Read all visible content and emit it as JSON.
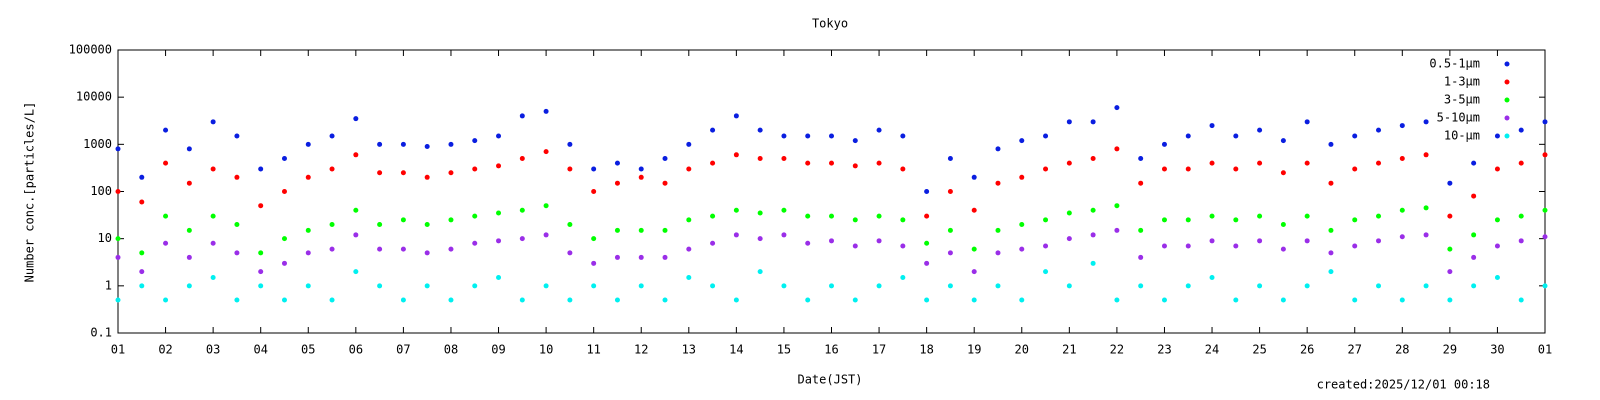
{
  "chart_data": {
    "type": "scatter",
    "title": "Tokyo",
    "xlabel": "Date(JST)",
    "ylabel": "Number conc.[particles/L]",
    "annotation": "created:2025/12/01 00:18",
    "yscale": "log",
    "ylim": [
      0.1,
      100000
    ],
    "yticks": [
      0.1,
      1,
      10,
      100,
      1000,
      10000,
      100000
    ],
    "xlim": [
      1,
      31
    ],
    "xticks": [
      {
        "value": 1,
        "label": "01"
      },
      {
        "value": 2,
        "label": "02"
      },
      {
        "value": 3,
        "label": "03"
      },
      {
        "value": 4,
        "label": "04"
      },
      {
        "value": 5,
        "label": "05"
      },
      {
        "value": 6,
        "label": "06"
      },
      {
        "value": 7,
        "label": "07"
      },
      {
        "value": 8,
        "label": "08"
      },
      {
        "value": 9,
        "label": "09"
      },
      {
        "value": 10,
        "label": "10"
      },
      {
        "value": 11,
        "label": "11"
      },
      {
        "value": 12,
        "label": "12"
      },
      {
        "value": 13,
        "label": "13"
      },
      {
        "value": 14,
        "label": "14"
      },
      {
        "value": 15,
        "label": "15"
      },
      {
        "value": 16,
        "label": "16"
      },
      {
        "value": 17,
        "label": "17"
      },
      {
        "value": 18,
        "label": "18"
      },
      {
        "value": 19,
        "label": "19"
      },
      {
        "value": 20,
        "label": "20"
      },
      {
        "value": 21,
        "label": "21"
      },
      {
        "value": 22,
        "label": "22"
      },
      {
        "value": 23,
        "label": "23"
      },
      {
        "value": 24,
        "label": "24"
      },
      {
        "value": 25,
        "label": "25"
      },
      {
        "value": 26,
        "label": "26"
      },
      {
        "value": 27,
        "label": "27"
      },
      {
        "value": 28,
        "label": "28"
      },
      {
        "value": 29,
        "label": "29"
      },
      {
        "value": 30,
        "label": "30"
      },
      {
        "value": 31,
        "label": "01"
      }
    ],
    "legend": "upper right",
    "x": [
      1,
      1.5,
      2,
      2.5,
      3,
      3.5,
      4,
      4.5,
      5,
      5.5,
      6,
      6.5,
      7,
      7.5,
      8,
      8.5,
      9,
      9.5,
      10,
      10.5,
      11,
      11.5,
      12,
      12.5,
      13,
      13.5,
      14,
      14.5,
      15,
      15.5,
      16,
      16.5,
      17,
      17.5,
      18,
      18.5,
      19,
      19.5,
      20,
      20.5,
      21,
      21.5,
      22,
      22.5,
      23,
      23.5,
      24,
      24.5,
      25,
      25.5,
      26,
      26.5,
      27,
      27.5,
      28,
      28.5,
      29,
      29.5,
      30,
      30.5,
      31
    ],
    "series": [
      {
        "name": "0.5-1μm",
        "color": "#0a1ee0",
        "values": [
          800,
          200,
          2000,
          800,
          3000,
          1500,
          300,
          500,
          1000,
          1500,
          3500,
          1000,
          1000,
          900,
          1000,
          1200,
          1500,
          4000,
          5000,
          1000,
          300,
          400,
          300,
          500,
          1000,
          2000,
          4000,
          2000,
          1500,
          1500,
          1500,
          1200,
          2000,
          1500,
          100,
          500,
          200,
          800,
          1200,
          1500,
          3000,
          3000,
          6000,
          500,
          1000,
          1500,
          2500,
          1500,
          2000,
          1200,
          3000,
          1000,
          1500,
          2000,
          2500,
          3000,
          150,
          400,
          1500,
          2000,
          3000
        ]
      },
      {
        "name": "1-3μm",
        "color": "#ff0000",
        "values": [
          100,
          60,
          400,
          150,
          300,
          200,
          50,
          100,
          200,
          300,
          600,
          250,
          250,
          200,
          250,
          300,
          350,
          500,
          700,
          300,
          100,
          150,
          200,
          150,
          300,
          400,
          600,
          500,
          500,
          400,
          400,
          350,
          400,
          300,
          30,
          100,
          40,
          150,
          200,
          300,
          400,
          500,
          800,
          150,
          300,
          300,
          400,
          300,
          400,
          250,
          400,
          150,
          300,
          400,
          500,
          600,
          30,
          80,
          300,
          400,
          600
        ]
      },
      {
        "name": "3-5μm",
        "color": "#00ff00",
        "values": [
          10,
          5,
          30,
          15,
          30,
          20,
          5,
          10,
          15,
          20,
          40,
          20,
          25,
          20,
          25,
          30,
          35,
          40,
          50,
          20,
          10,
          15,
          15,
          15,
          25,
          30,
          40,
          35,
          40,
          30,
          30,
          25,
          30,
          25,
          8,
          15,
          6,
          15,
          20,
          25,
          35,
          40,
          50,
          15,
          25,
          25,
          30,
          25,
          30,
          20,
          30,
          15,
          25,
          30,
          40,
          45,
          6,
          12,
          25,
          30,
          40
        ]
      },
      {
        "name": "5-10μm",
        "color": "#9a2ee8",
        "values": [
          4,
          2,
          8,
          4,
          8,
          5,
          2,
          3,
          5,
          6,
          12,
          6,
          6,
          5,
          6,
          8,
          9,
          10,
          12,
          5,
          3,
          4,
          4,
          4,
          6,
          8,
          12,
          10,
          12,
          8,
          9,
          7,
          9,
          7,
          3,
          5,
          2,
          5,
          6,
          7,
          10,
          12,
          15,
          4,
          7,
          7,
          9,
          7,
          9,
          6,
          9,
          5,
          7,
          9,
          11,
          12,
          2,
          4,
          7,
          9,
          11
        ]
      },
      {
        "name": "10-μm",
        "color": "#00f0f0",
        "values": [
          0.5,
          1,
          0.5,
          1,
          1.5,
          0.5,
          1,
          0.5,
          1,
          0.5,
          2,
          1,
          0.5,
          1,
          0.5,
          1,
          1.5,
          0.5,
          1,
          0.5,
          1,
          0.5,
          1,
          0.5,
          1.5,
          1,
          0.5,
          2,
          1,
          0.5,
          1,
          0.5,
          1,
          1.5,
          0.5,
          1,
          0.5,
          1,
          0.5,
          2,
          1,
          3,
          0.5,
          1,
          0.5,
          1,
          1.5,
          0.5,
          1,
          0.5,
          1,
          2,
          0.5,
          1,
          0.5,
          1,
          0.5,
          1,
          1.5,
          0.5,
          1
        ]
      }
    ]
  }
}
